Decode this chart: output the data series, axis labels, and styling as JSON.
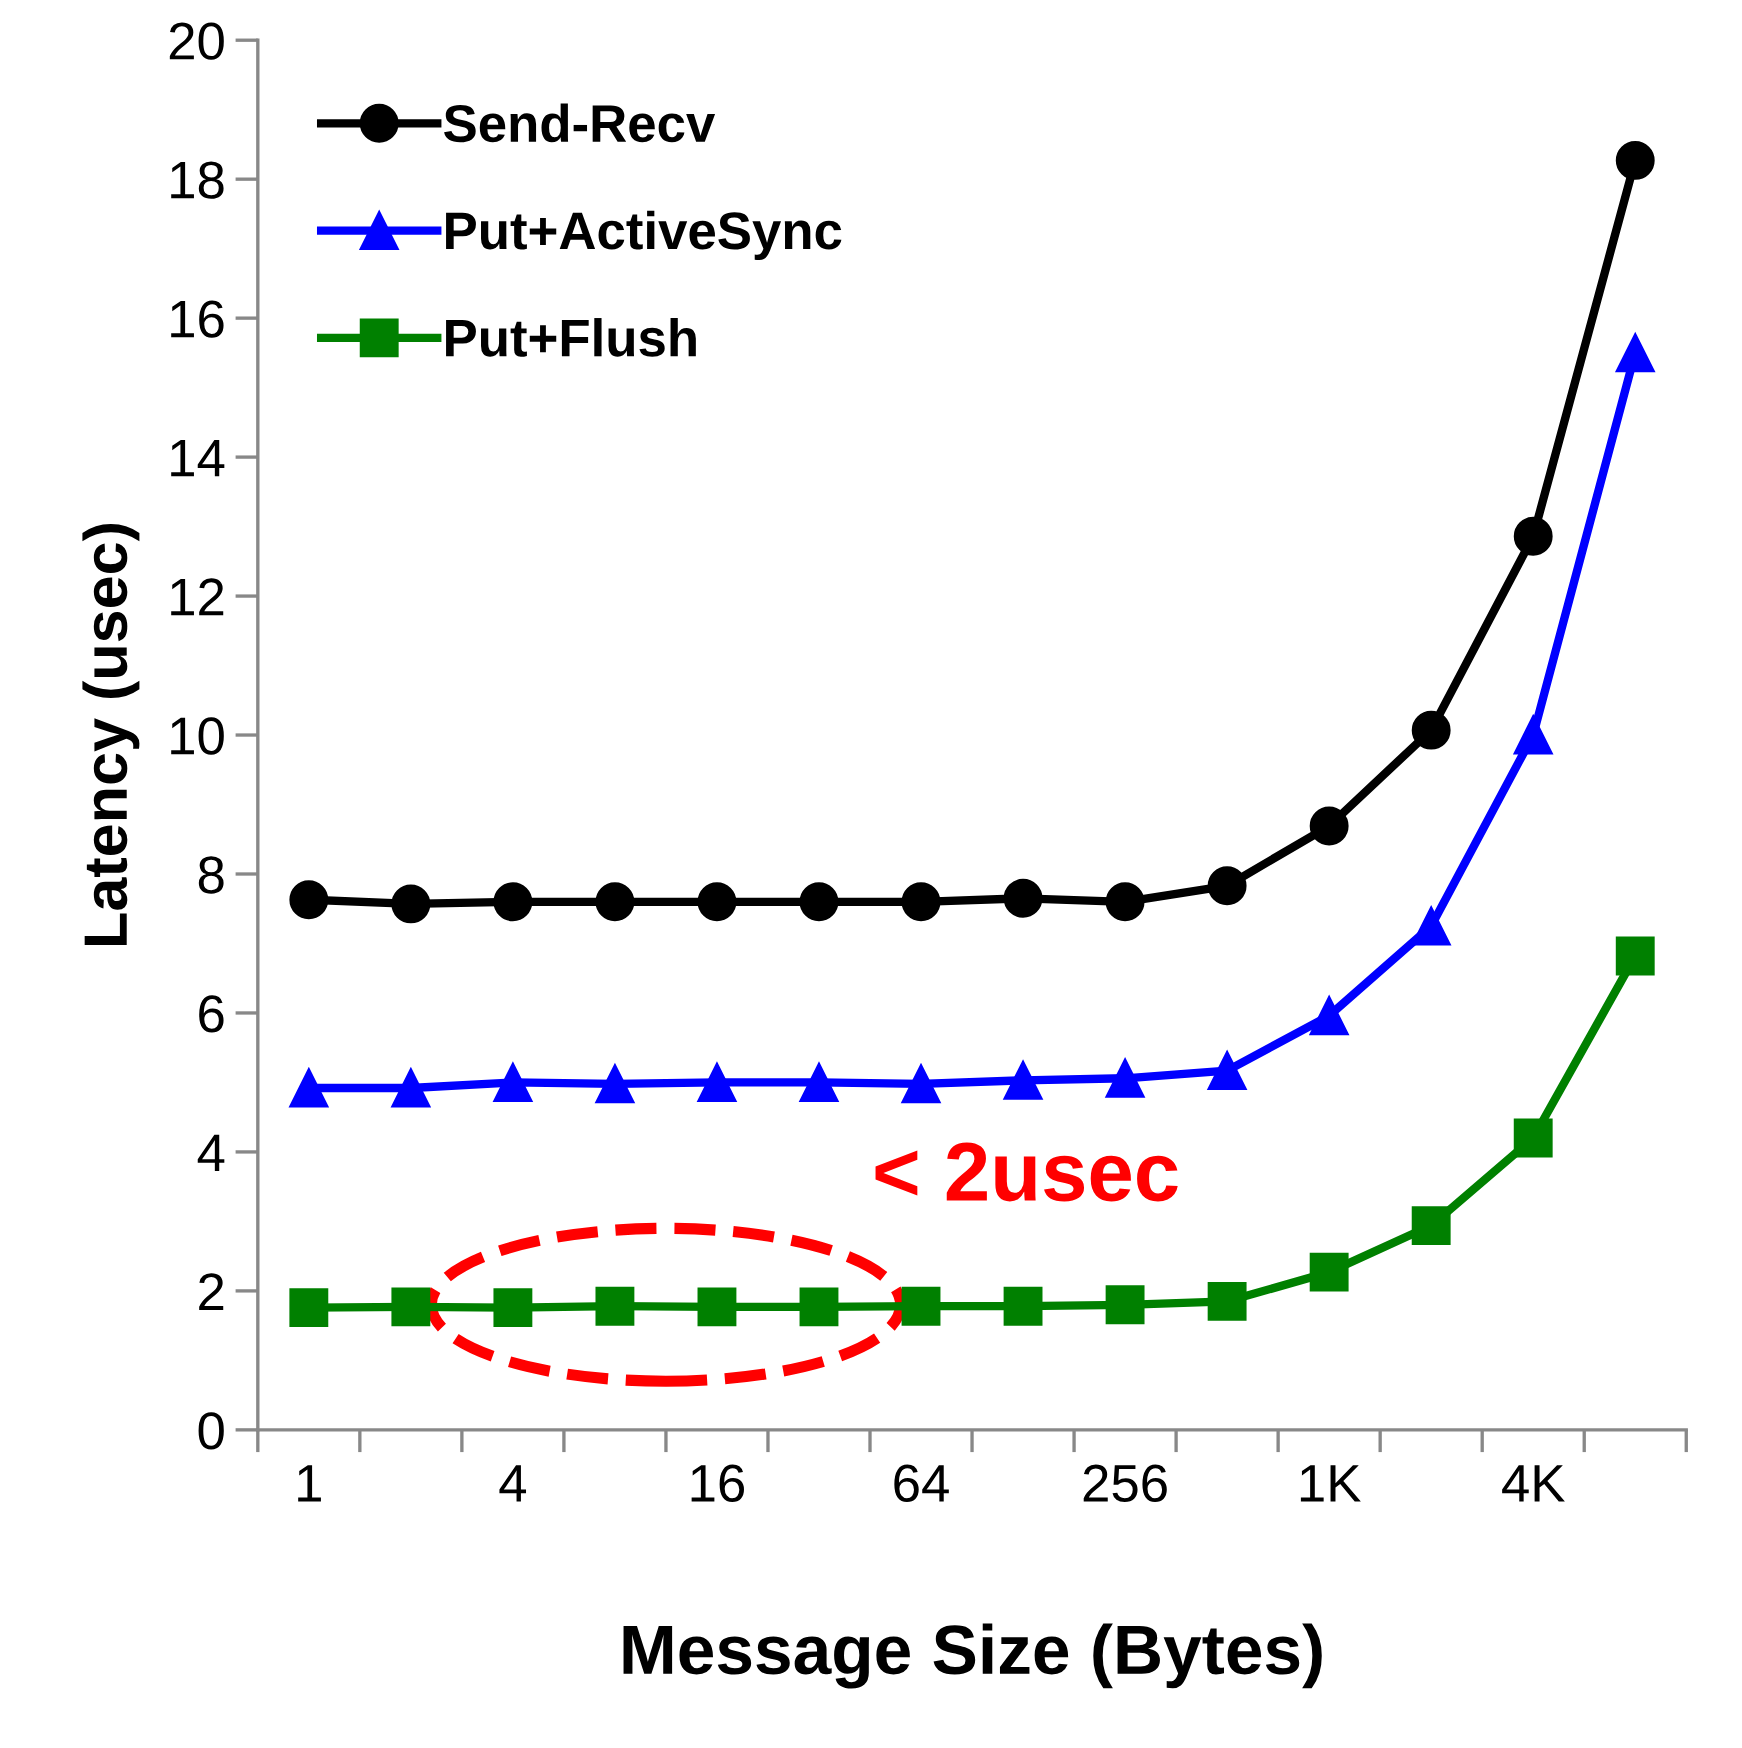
{
  "chart_data": {
    "type": "line",
    "xlabel": "Message Size (Bytes)",
    "ylabel": "Latency (usec)",
    "categories": [
      "1",
      null,
      "4",
      null,
      "16",
      null,
      "64",
      null,
      "256",
      null,
      "1K",
      null,
      "4K",
      null
    ],
    "series": [
      {
        "name": "Send-Recv",
        "color": "#000000",
        "marker": "circle",
        "values": [
          7.63,
          7.57,
          7.6,
          7.6,
          7.6,
          7.6,
          7.6,
          7.65,
          7.6,
          7.83,
          8.69,
          10.07,
          12.86,
          18.27
        ]
      },
      {
        "name": "Put+ActiveSync",
        "color": "#0000ff",
        "marker": "triangle",
        "values": [
          4.92,
          4.92,
          5.0,
          4.98,
          5.0,
          5.0,
          4.98,
          5.03,
          5.06,
          5.17,
          5.96,
          7.25,
          10.0,
          15.5
        ]
      },
      {
        "name": "Put+Flush",
        "color": "#008000",
        "marker": "square",
        "values": [
          1.76,
          1.77,
          1.76,
          1.78,
          1.77,
          1.77,
          1.78,
          1.78,
          1.8,
          1.85,
          2.27,
          2.94,
          4.2,
          6.82
        ]
      }
    ],
    "ylim": [
      0,
      20
    ],
    "yticks": [
      0,
      2,
      4,
      6,
      8,
      10,
      12,
      14,
      16,
      18,
      20
    ],
    "grid": false,
    "legend": "top left",
    "line_style": "solid",
    "annotations": [
      "< 2usec"
    ]
  }
}
